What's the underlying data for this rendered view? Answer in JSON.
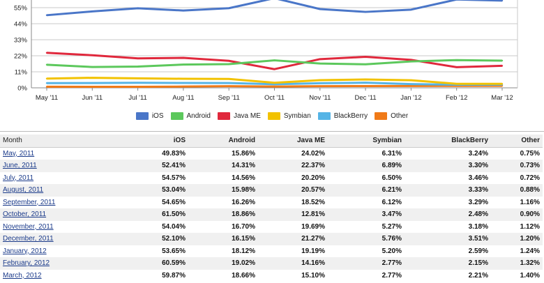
{
  "chart_data": {
    "type": "line",
    "categories": [
      "May '11",
      "Jun '11",
      "Jul '11",
      "Aug '11",
      "Sep '11",
      "Oct '11",
      "Nov '11",
      "Dec '11",
      "Jan '12",
      "Feb '12",
      "Mar '12"
    ],
    "y_ticks": [
      "0%",
      "11%",
      "22%",
      "33%",
      "44%",
      "55%"
    ],
    "ylim": [
      0,
      66
    ],
    "grid": true,
    "legend_position": "bottom",
    "series": [
      {
        "name": "iOS",
        "color": "#4a76c8",
        "values": [
          49.83,
          52.41,
          54.57,
          53.04,
          54.65,
          61.5,
          54.04,
          52.1,
          53.65,
          60.59,
          59.87
        ]
      },
      {
        "name": "Android",
        "color": "#5cc85c",
        "values": [
          15.86,
          14.31,
          14.56,
          15.98,
          16.26,
          18.86,
          16.7,
          16.15,
          18.12,
          19.02,
          18.66
        ]
      },
      {
        "name": "Java ME",
        "color": "#e0283c",
        "values": [
          24.02,
          22.37,
          20.2,
          20.57,
          18.52,
          12.81,
          19.69,
          21.27,
          19.19,
          14.16,
          15.1
        ]
      },
      {
        "name": "Symbian",
        "color": "#f2c200",
        "values": [
          6.31,
          6.89,
          6.5,
          6.21,
          6.12,
          3.47,
          5.27,
          5.76,
          5.2,
          2.77,
          2.77
        ]
      },
      {
        "name": "BlackBerry",
        "color": "#55b4e6",
        "values": [
          3.24,
          3.3,
          3.46,
          3.33,
          3.29,
          2.48,
          3.18,
          3.51,
          2.59,
          2.15,
          2.21
        ]
      },
      {
        "name": "Other",
        "color": "#f07a18",
        "values": [
          0.75,
          0.73,
          0.72,
          0.88,
          1.16,
          0.9,
          1.12,
          1.2,
          1.24,
          1.32,
          1.4
        ]
      }
    ]
  },
  "legend": [
    {
      "label": "iOS",
      "color": "#4a76c8"
    },
    {
      "label": "Android",
      "color": "#5cc85c"
    },
    {
      "label": "Java ME",
      "color": "#e0283c"
    },
    {
      "label": "Symbian",
      "color": "#f2c200"
    },
    {
      "label": "BlackBerry",
      "color": "#55b4e6"
    },
    {
      "label": "Other",
      "color": "#f07a18"
    }
  ],
  "table": {
    "headers": [
      "Month",
      "iOS",
      "Android",
      "Java ME",
      "Symbian",
      "BlackBerry",
      "Other"
    ],
    "rows": [
      {
        "month": "May, 2011",
        "values": [
          "49.83%",
          "15.86%",
          "24.02%",
          "6.31%",
          "3.24%",
          "0.75%"
        ]
      },
      {
        "month": "June, 2011",
        "values": [
          "52.41%",
          "14.31%",
          "22.37%",
          "6.89%",
          "3.30%",
          "0.73%"
        ]
      },
      {
        "month": "July, 2011",
        "values": [
          "54.57%",
          "14.56%",
          "20.20%",
          "6.50%",
          "3.46%",
          "0.72%"
        ]
      },
      {
        "month": "August, 2011",
        "values": [
          "53.04%",
          "15.98%",
          "20.57%",
          "6.21%",
          "3.33%",
          "0.88%"
        ]
      },
      {
        "month": "September, 2011",
        "values": [
          "54.65%",
          "16.26%",
          "18.52%",
          "6.12%",
          "3.29%",
          "1.16%"
        ]
      },
      {
        "month": "October, 2011",
        "values": [
          "61.50%",
          "18.86%",
          "12.81%",
          "3.47%",
          "2.48%",
          "0.90%"
        ]
      },
      {
        "month": "November, 2011",
        "values": [
          "54.04%",
          "16.70%",
          "19.69%",
          "5.27%",
          "3.18%",
          "1.12%"
        ]
      },
      {
        "month": "December, 2011",
        "values": [
          "52.10%",
          "16.15%",
          "21.27%",
          "5.76%",
          "3.51%",
          "1.20%"
        ]
      },
      {
        "month": "January, 2012",
        "values": [
          "53.65%",
          "18.12%",
          "19.19%",
          "5.20%",
          "2.59%",
          "1.24%"
        ]
      },
      {
        "month": "February, 2012",
        "values": [
          "60.59%",
          "19.02%",
          "14.16%",
          "2.77%",
          "2.15%",
          "1.32%"
        ]
      },
      {
        "month": "March, 2012",
        "values": [
          "59.87%",
          "18.66%",
          "15.10%",
          "2.77%",
          "2.21%",
          "1.40%"
        ]
      }
    ]
  }
}
